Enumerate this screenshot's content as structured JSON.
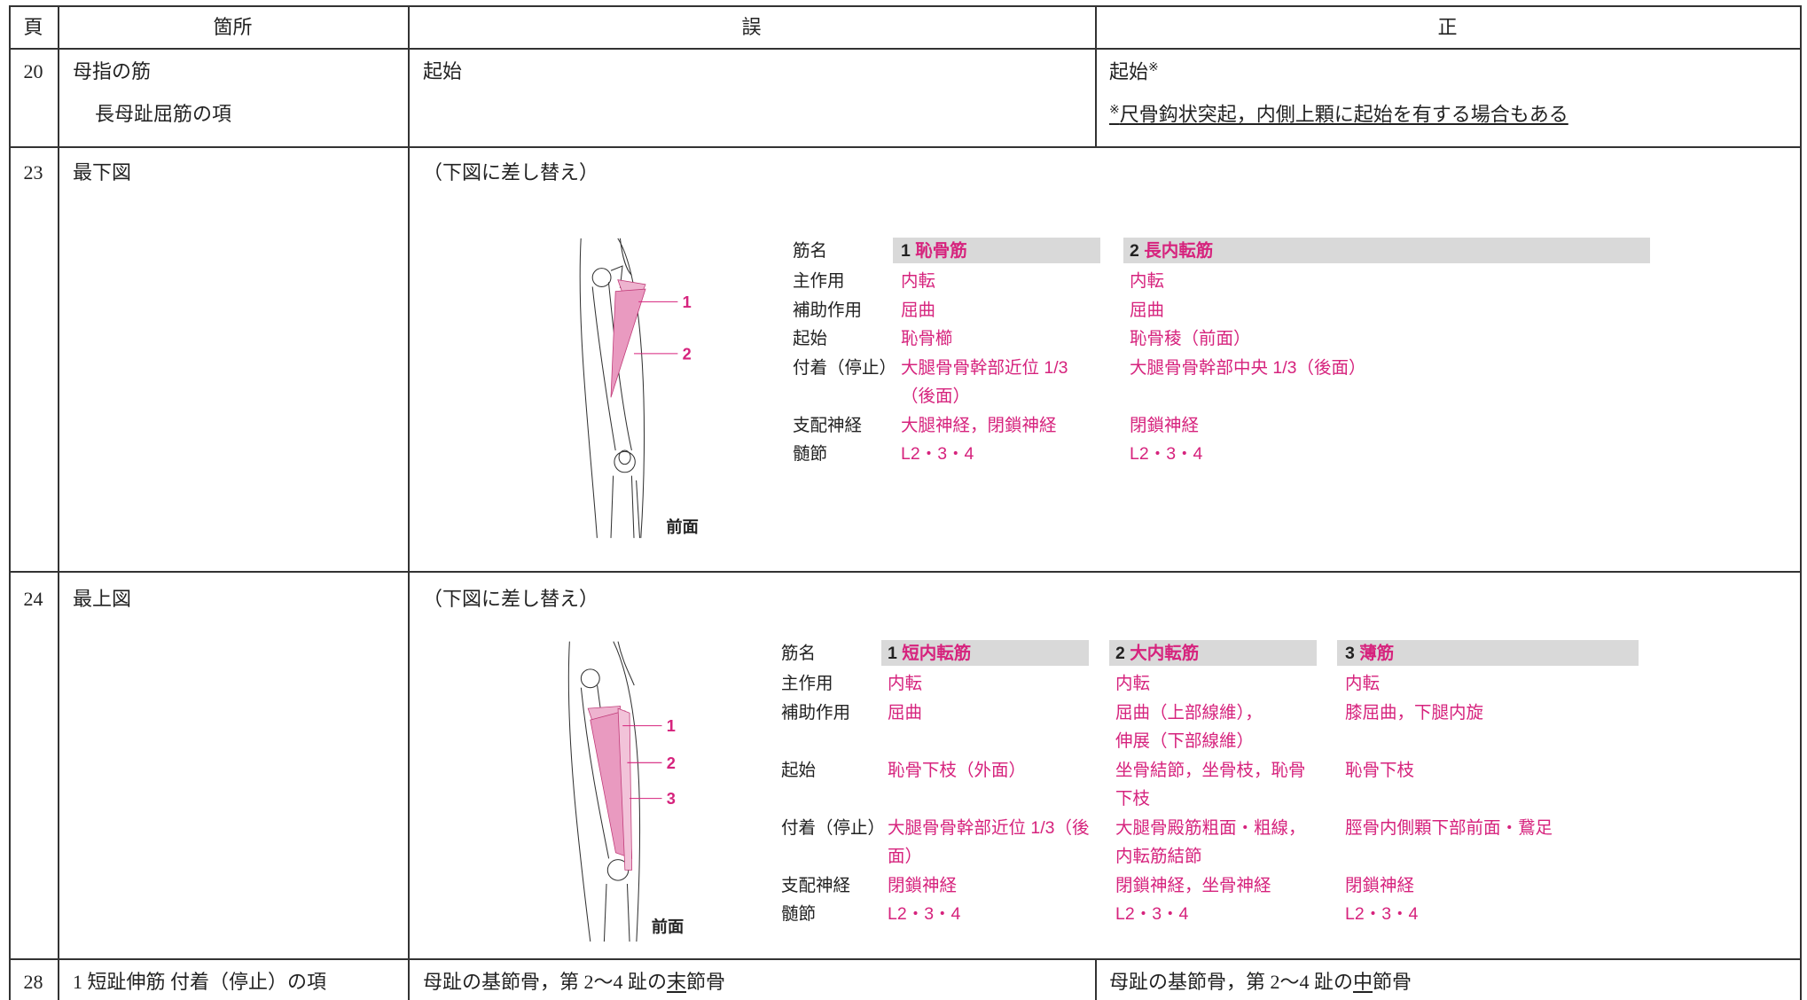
{
  "table": {
    "headers": [
      "頁",
      "箇所",
      "誤",
      "正"
    ],
    "rows": [
      {
        "page": "20",
        "location": [
          "母指の筋",
          "長母趾屈筋の項"
        ],
        "wrong": "起始",
        "correct": {
          "text": "起始",
          "mark": "※",
          "note_mark": "※",
          "note": "尺骨鈎状突起，内側上顆に起始を有する場合もある"
        }
      },
      {
        "page": "23",
        "location": [
          "最下図"
        ],
        "wrong": "（下図に差し替え）",
        "figure": {
          "callouts": [
            "1",
            "2"
          ],
          "view": "前面",
          "row_labels": [
            "筋名",
            "主作用",
            "補助作用",
            "起始",
            "付着（停止）",
            "支配神経",
            "髄節"
          ],
          "muscles": [
            {
              "number": "1",
              "name": "恥骨筋",
              "cells": [
                "内転",
                "屈曲",
                "恥骨櫛",
                [
                  "大腿骨骨幹部近位 1/3",
                  "（後面）"
                ],
                "大腿神経，閉鎖神経",
                "L2・3・4"
              ]
            },
            {
              "number": "2",
              "name": "長内転筋",
              "cells": [
                "内転",
                "屈曲",
                "恥骨稜（前面）",
                "大腿骨骨幹部中央 1/3（後面）",
                "閉鎖神経",
                "L2・3・4"
              ]
            }
          ]
        }
      },
      {
        "page": "24",
        "location": [
          "最上図"
        ],
        "wrong": "（下図に差し替え）",
        "figure": {
          "callouts": [
            "1",
            "2",
            "3"
          ],
          "view": "前面",
          "row_labels": [
            "筋名",
            "主作用",
            "補助作用",
            "起始",
            "付着（停止）",
            "支配神経",
            "髄節"
          ],
          "muscles": [
            {
              "number": "1",
              "name": "短内転筋",
              "cells": [
                "内転",
                "屈曲",
                "恥骨下枝（外面）",
                [
                  "大腿骨骨幹部近位 1/3（後",
                  "面）"
                ],
                "閉鎖神経",
                "L2・3・4"
              ]
            },
            {
              "number": "2",
              "name": "大内転筋",
              "cells": [
                "内転",
                [
                  "屈曲（上部線維），",
                  "伸展（下部線維）"
                ],
                [
                  "坐骨結節，坐骨枝，恥骨",
                  "下枝"
                ],
                [
                  "大腿骨殿筋粗面・粗線，",
                  "内転筋結節"
                ],
                "閉鎖神経，坐骨神経",
                "L2・3・4"
              ]
            },
            {
              "number": "3",
              "name": "薄筋",
              "cells": [
                "内転",
                "膝屈曲，下腿内旋",
                "恥骨下枝",
                "脛骨内側顆下部前面・鵞足",
                "閉鎖神経",
                "L2・3・4"
              ]
            }
          ]
        }
      },
      {
        "page": "28",
        "location": [
          "1 短趾伸筋 付着（停止）の項"
        ],
        "wrong": {
          "before": "母趾の基節骨，第 2〜4 趾の",
          "underlined": "末",
          "after": "節骨"
        },
        "correct": {
          "before": "母趾の基節骨，第 2〜4 趾の",
          "underlined": "中",
          "after": "節骨"
        }
      }
    ]
  }
}
